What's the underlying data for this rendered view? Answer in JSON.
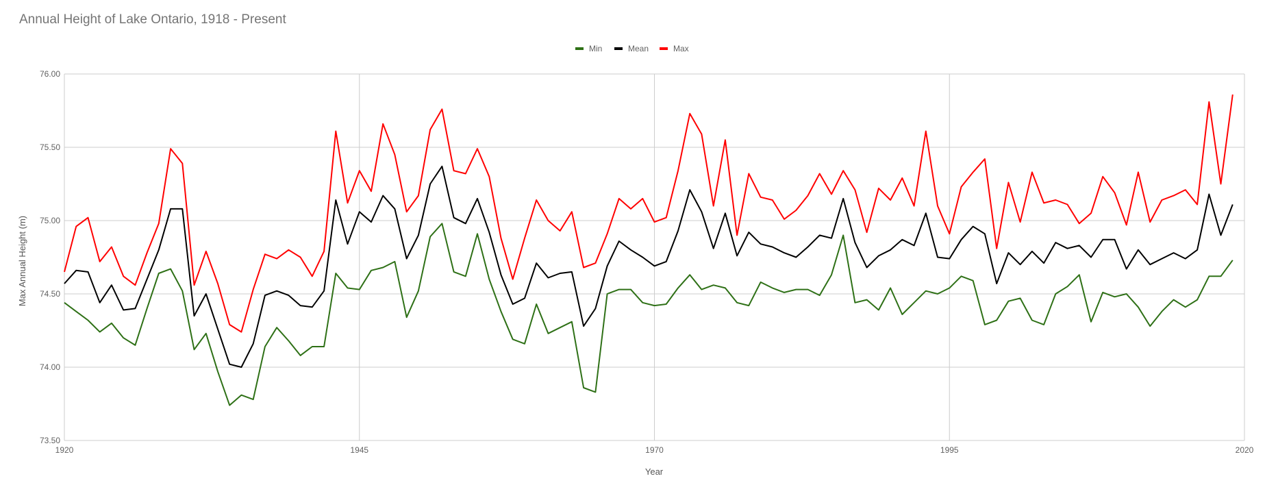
{
  "chart_data": {
    "type": "line",
    "title": "Annual Height of Lake Ontario, 1918 - Present",
    "xlabel": "Year",
    "ylabel": "Max Annual Height (m)",
    "xlim": [
      1920,
      2020
    ],
    "ylim": [
      73.5,
      76.0
    ],
    "x_ticks": [
      "1920",
      "1945",
      "1970",
      "1995",
      "2020"
    ],
    "y_ticks": [
      "73.50",
      "74.00",
      "74.50",
      "75.00",
      "75.50",
      "76.00"
    ],
    "grid": true,
    "legend_position": "top",
    "x": [
      1920,
      1921,
      1922,
      1923,
      1924,
      1925,
      1926,
      1927,
      1928,
      1929,
      1930,
      1931,
      1932,
      1933,
      1934,
      1935,
      1936,
      1937,
      1938,
      1939,
      1940,
      1941,
      1942,
      1943,
      1944,
      1945,
      1946,
      1947,
      1948,
      1949,
      1950,
      1951,
      1952,
      1953,
      1954,
      1955,
      1956,
      1957,
      1958,
      1959,
      1960,
      1961,
      1962,
      1963,
      1964,
      1965,
      1966,
      1967,
      1968,
      1969,
      1970,
      1971,
      1972,
      1973,
      1974,
      1975,
      1976,
      1977,
      1978,
      1979,
      1980,
      1981,
      1982,
      1983,
      1984,
      1985,
      1986,
      1987,
      1988,
      1989,
      1990,
      1991,
      1992,
      1993,
      1994,
      1995,
      1996,
      1997,
      1998,
      1999,
      2000,
      2001,
      2002,
      2003,
      2004,
      2005,
      2006,
      2007,
      2008,
      2009,
      2010,
      2011,
      2012,
      2013,
      2014,
      2015,
      2016,
      2017,
      2018,
      2019
    ],
    "series": [
      {
        "name": "Min",
        "color": "#2e7016",
        "values": [
          74.44,
          74.38,
          74.32,
          74.24,
          74.3,
          74.2,
          74.15,
          74.4,
          74.64,
          74.67,
          74.52,
          74.12,
          74.23,
          73.97,
          73.74,
          73.81,
          73.78,
          74.14,
          74.27,
          74.18,
          74.08,
          74.14,
          74.14,
          74.64,
          74.54,
          74.53,
          74.66,
          74.68,
          74.72,
          74.34,
          74.52,
          74.89,
          74.98,
          74.65,
          74.62,
          74.91,
          74.6,
          74.38,
          74.19,
          74.16,
          74.43,
          74.23,
          74.27,
          74.31,
          73.86,
          73.83,
          74.5,
          74.53,
          74.53,
          74.44,
          74.42,
          74.43,
          74.54,
          74.63,
          74.53,
          74.56,
          74.54,
          74.44,
          74.42,
          74.58,
          74.54,
          74.51,
          74.53,
          74.53,
          74.49,
          74.63,
          74.9,
          74.44,
          74.46,
          74.39,
          74.54,
          74.36,
          74.44,
          74.52,
          74.5,
          74.54,
          74.62,
          74.59,
          74.29,
          74.32,
          74.45,
          74.47,
          74.32,
          74.29,
          74.5,
          74.55,
          74.63,
          74.31,
          74.51,
          74.48,
          74.5,
          74.41,
          74.28,
          74.38,
          74.46,
          74.41,
          74.46,
          74.62,
          74.62,
          74.73
        ]
      },
      {
        "name": "Mean",
        "color": "#000000",
        "values": [
          74.57,
          74.66,
          74.65,
          74.44,
          74.56,
          74.39,
          74.4,
          74.6,
          74.8,
          75.08,
          75.08,
          74.35,
          74.5,
          74.26,
          74.02,
          74.0,
          74.16,
          74.49,
          74.52,
          74.49,
          74.42,
          74.41,
          74.52,
          75.14,
          74.84,
          75.06,
          74.99,
          75.17,
          75.08,
          74.74,
          74.9,
          75.25,
          75.37,
          75.02,
          74.98,
          75.15,
          74.92,
          74.63,
          74.43,
          74.47,
          74.71,
          74.61,
          74.64,
          74.65,
          74.28,
          74.4,
          74.69,
          74.86,
          74.8,
          74.75,
          74.69,
          74.72,
          74.93,
          75.21,
          75.06,
          74.81,
          75.05,
          74.76,
          74.92,
          74.84,
          74.82,
          74.78,
          74.75,
          74.82,
          74.9,
          74.88,
          75.15,
          74.85,
          74.68,
          74.76,
          74.8,
          74.87,
          74.83,
          75.05,
          74.75,
          74.74,
          74.87,
          74.96,
          74.91,
          74.57,
          74.78,
          74.7,
          74.79,
          74.71,
          74.85,
          74.81,
          74.83,
          74.75,
          74.87,
          74.87,
          74.67,
          74.8,
          74.7,
          74.74,
          74.78,
          74.74,
          74.8,
          75.18,
          74.9,
          75.11
        ]
      },
      {
        "name": "Max",
        "color": "#ff0000",
        "values": [
          74.65,
          74.96,
          75.02,
          74.72,
          74.82,
          74.62,
          74.56,
          74.78,
          74.98,
          75.49,
          75.39,
          74.56,
          74.79,
          74.57,
          74.29,
          74.24,
          74.53,
          74.77,
          74.74,
          74.8,
          74.75,
          74.62,
          74.79,
          75.61,
          75.12,
          75.34,
          75.2,
          75.66,
          75.45,
          75.06,
          75.17,
          75.62,
          75.76,
          75.34,
          75.32,
          75.49,
          75.3,
          74.88,
          74.6,
          74.88,
          75.14,
          75.0,
          74.93,
          75.06,
          74.68,
          74.71,
          74.91,
          75.15,
          75.08,
          75.15,
          74.99,
          75.02,
          75.34,
          75.73,
          75.59,
          75.1,
          75.55,
          74.9,
          75.32,
          75.16,
          75.14,
          75.01,
          75.07,
          75.17,
          75.32,
          75.18,
          75.34,
          75.21,
          74.92,
          75.22,
          75.14,
          75.29,
          75.1,
          75.61,
          75.1,
          74.91,
          75.23,
          75.33,
          75.42,
          74.81,
          75.26,
          74.99,
          75.33,
          75.12,
          75.14,
          75.11,
          74.98,
          75.05,
          75.3,
          75.19,
          74.97,
          75.33,
          74.99,
          75.14,
          75.17,
          75.21,
          75.11,
          75.81,
          75.25,
          75.86
        ]
      }
    ]
  }
}
